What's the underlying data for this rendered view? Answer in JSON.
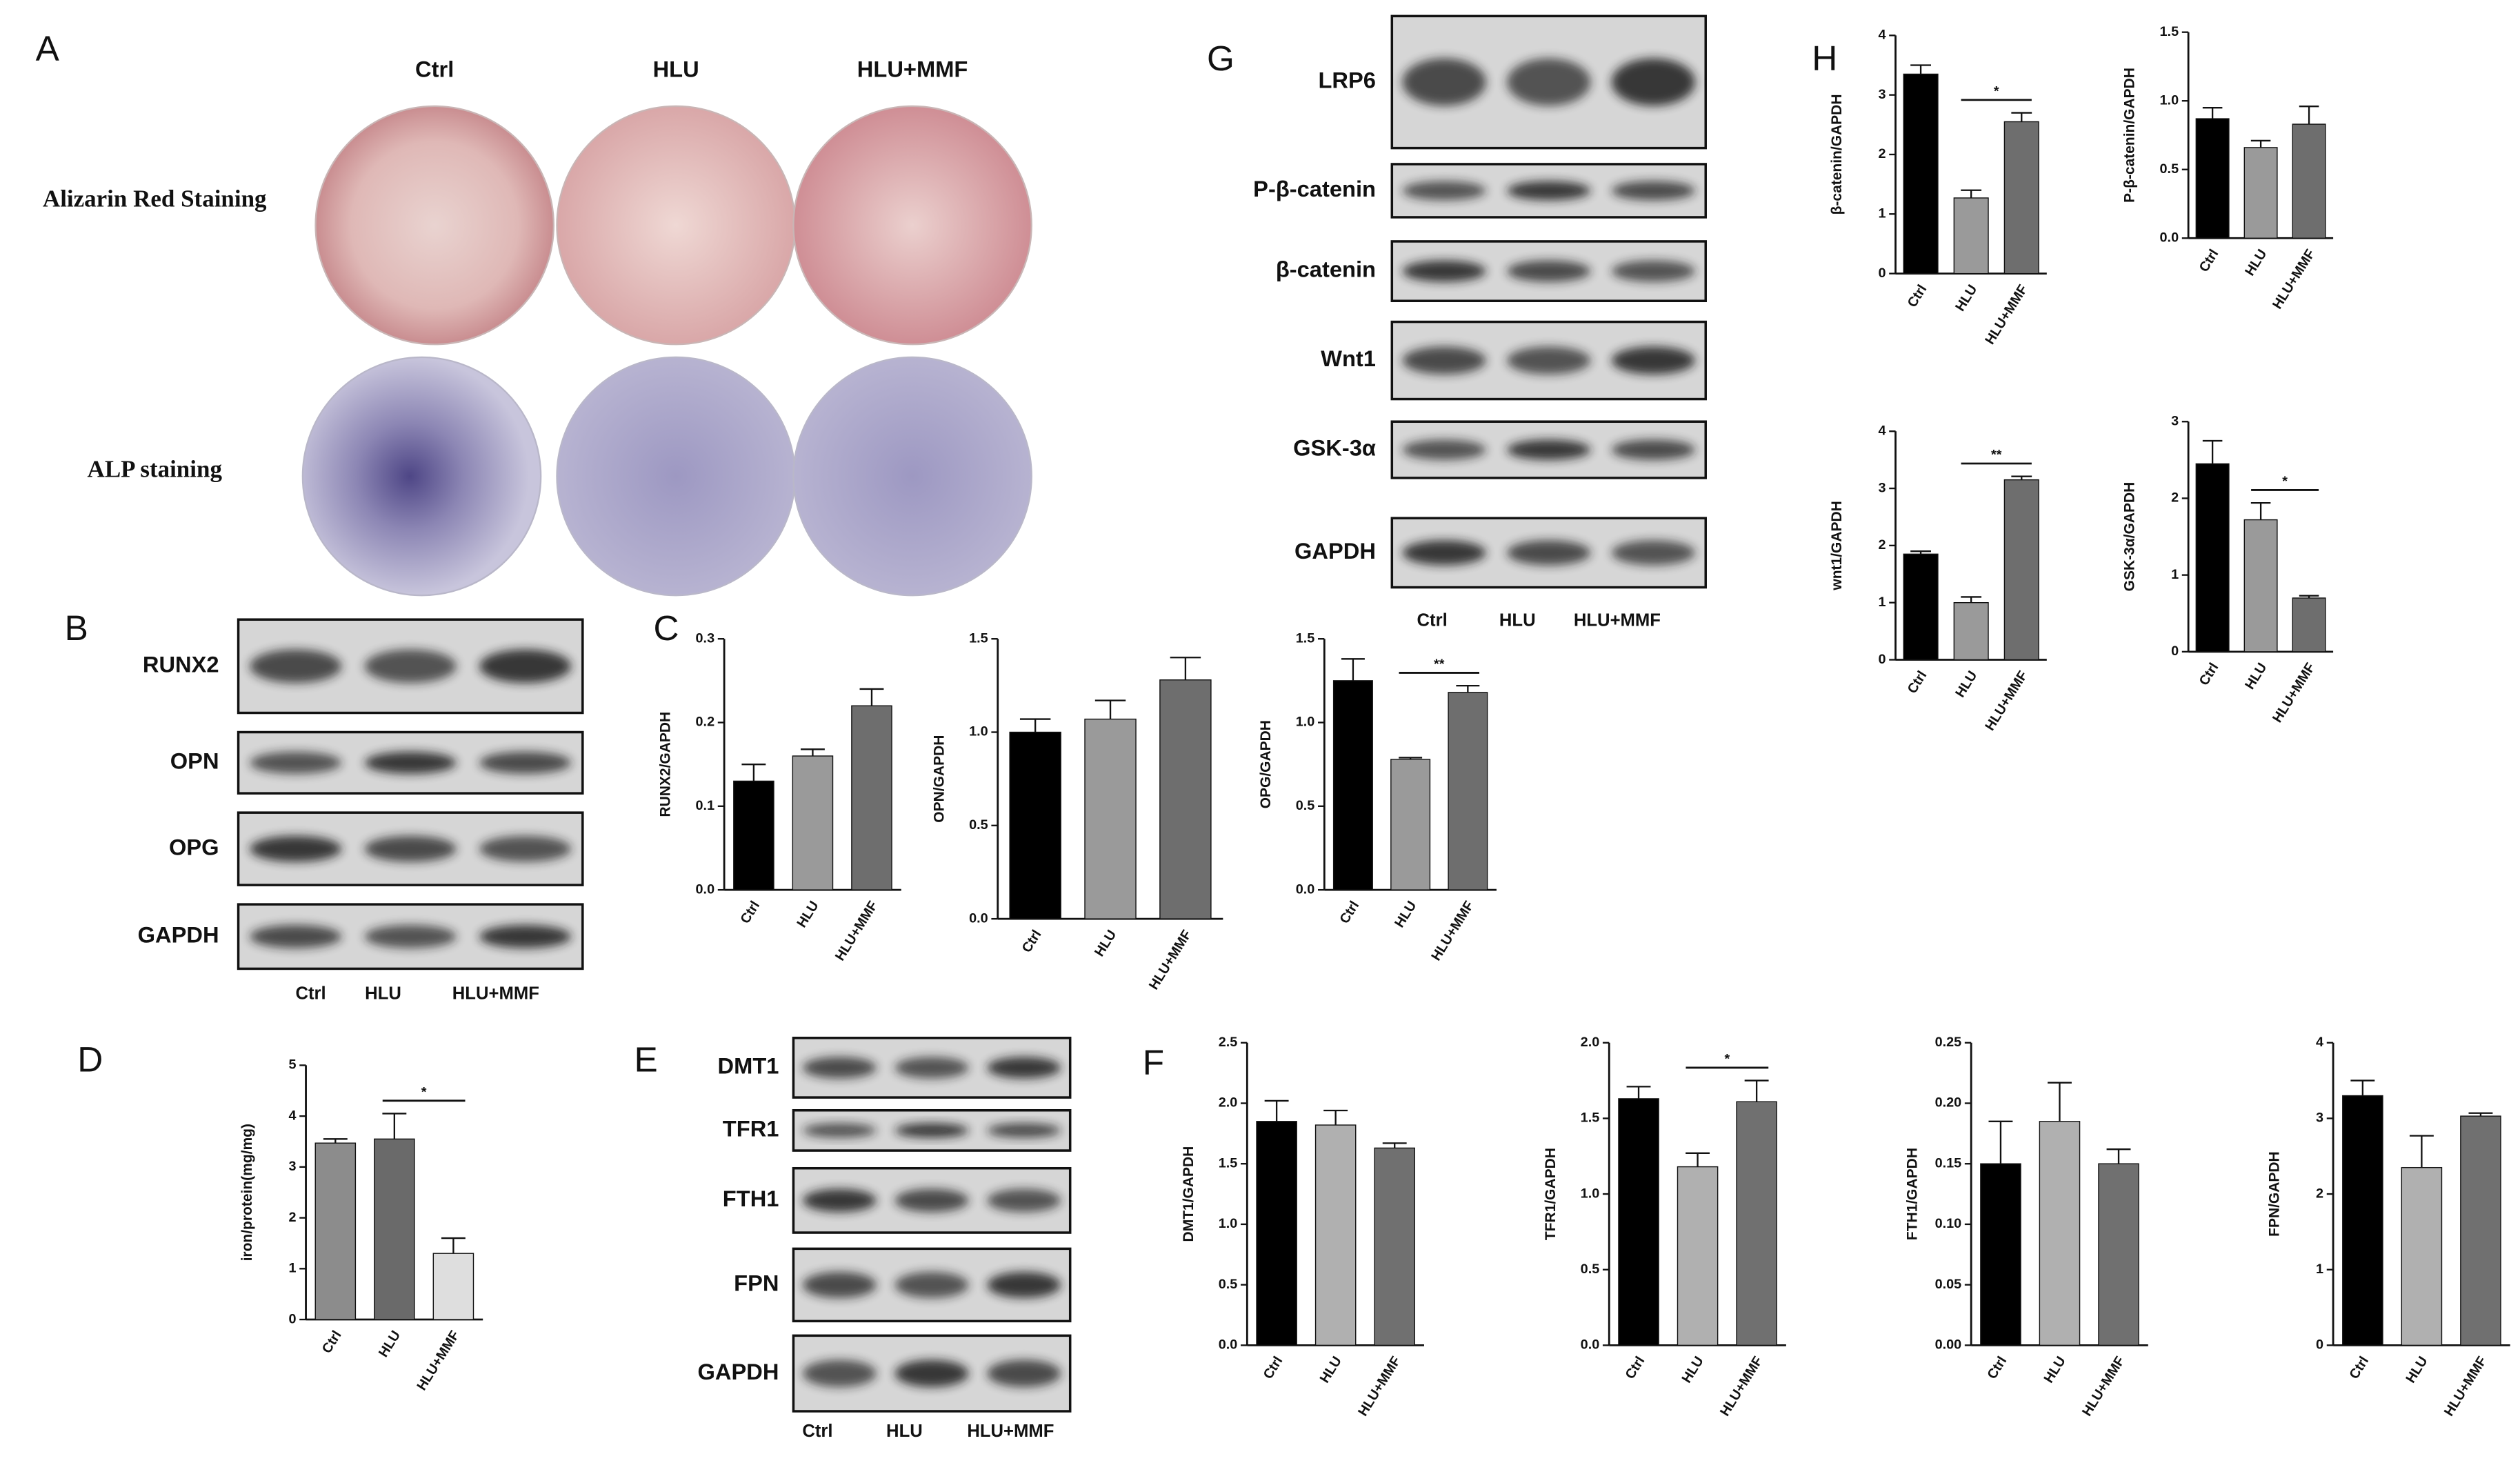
{
  "panel_labels": [
    "A",
    "B",
    "C",
    "D",
    "E",
    "F",
    "G",
    "H"
  ],
  "staining": {
    "columns": [
      "Ctrl",
      "HLU",
      "HLU+MMF"
    ],
    "rows": [
      "Alizarin Red Staining",
      "ALP staining"
    ]
  },
  "blots": [
    {
      "proteins": [
        "RUNX2",
        "OPN",
        "OPG",
        "GAPDH"
      ],
      "lanes": [
        "Ctrl",
        "HLU",
        "HLU+MMF"
      ]
    },
    {
      "proteins": [
        "DMT1",
        "TFR1",
        "FTH1",
        "FPN",
        "GAPDH"
      ],
      "lanes": [
        "Ctrl",
        "HLU",
        "HLU+MMF"
      ]
    },
    {
      "proteins": [
        "LRP6",
        "P-β-catenin",
        "β-catenin",
        "Wnt1",
        "GSK-3α",
        "GAPDH"
      ],
      "lanes": [
        "Ctrl",
        "HLU",
        "HLU+MMF"
      ]
    }
  ],
  "chart_data": [
    {
      "type": "bar",
      "ylabel": "RUNX2/GAPDH",
      "categories": [
        "Ctrl",
        "HLU",
        "HLU+MMF"
      ],
      "values": [
        0.13,
        0.16,
        0.22
      ],
      "errors": [
        0.02,
        0.008,
        0.02
      ],
      "colors": [
        "#000000",
        "#9a9a9a",
        "#6e6e6e"
      ],
      "ylim": [
        0,
        0.3
      ],
      "yticks": [
        {
          "value": 0,
          "label": "0.0"
        },
        0.1,
        0.2,
        0.3
      ],
      "annotations": []
    },
    {
      "type": "bar",
      "ylabel": "OPN/GAPDH",
      "categories": [
        "Ctrl",
        "HLU",
        "HLU+MMF"
      ],
      "values": [
        1.0,
        1.07,
        1.28
      ],
      "errors": [
        0.07,
        0.1,
        0.12
      ],
      "colors": [
        "#000000",
        "#9a9a9a",
        "#6e6e6e"
      ],
      "ylim": [
        0,
        1.5
      ],
      "yticks": [
        {
          "value": 0,
          "label": "0.0"
        },
        0.5,
        {
          "value": 1,
          "label": "1.0"
        },
        1.5
      ],
      "annotations": []
    },
    {
      "type": "bar",
      "ylabel": "OPG/GAPDH",
      "categories": [
        "Ctrl",
        "HLU",
        "HLU+MMF"
      ],
      "values": [
        1.25,
        0.78,
        1.18
      ],
      "errors": [
        0.13,
        0.01,
        0.04
      ],
      "colors": [
        "#000000",
        "#9a9a9a",
        "#6e6e6e"
      ],
      "ylim": [
        0,
        1.5
      ],
      "yticks": [
        {
          "value": 0,
          "label": "0.0"
        },
        0.5,
        {
          "value": 1,
          "label": "1.0"
        },
        1.5
      ],
      "annotations": [
        {
          "label": "**",
          "from": "HLU",
          "to": "HLU+MMF"
        }
      ]
    },
    {
      "type": "bar",
      "ylabel": "iron/protein(mg/mg)",
      "categories": [
        "Ctrl",
        "HLU",
        "HLU+MMF"
      ],
      "values": [
        3.47,
        3.55,
        1.3
      ],
      "errors": [
        0.08,
        0.5,
        0.3
      ],
      "colors": [
        "#8c8c8c",
        "#6a6a6a",
        "#dedede"
      ],
      "ylim": [
        0,
        5
      ],
      "yticks": [
        0,
        1,
        2,
        3,
        4,
        5
      ],
      "annotations": [
        {
          "label": "*",
          "from": "HLU",
          "to": "HLU+MMF"
        }
      ]
    },
    {
      "type": "bar",
      "ylabel": "DMT1/GAPDH",
      "categories": [
        "Ctrl",
        "HLU",
        "HLU+MMF"
      ],
      "values": [
        1.85,
        1.82,
        1.63
      ],
      "errors": [
        0.17,
        0.12,
        0.04
      ],
      "colors": [
        "#000000",
        "#b0b0b0",
        "#707070"
      ],
      "ylim": [
        0,
        2.5
      ],
      "yticks": [
        {
          "value": 0,
          "label": "0.0"
        },
        0.5,
        {
          "value": 1,
          "label": "1.0"
        },
        1.5,
        {
          "value": 2,
          "label": "2.0"
        },
        2.5
      ],
      "annotations": []
    },
    {
      "type": "bar",
      "ylabel": "TFR1/GAPDH",
      "categories": [
        "Ctrl",
        "HLU",
        "HLU+MMF"
      ],
      "values": [
        1.63,
        1.18,
        1.61
      ],
      "errors": [
        0.08,
        0.09,
        0.14
      ],
      "colors": [
        "#000000",
        "#b0b0b0",
        "#707070"
      ],
      "ylim": [
        0,
        2
      ],
      "yticks": [
        {
          "value": 0,
          "label": "0.0"
        },
        0.5,
        {
          "value": 1,
          "label": "1.0"
        },
        1.5,
        {
          "value": 2,
          "label": "2.0"
        }
      ],
      "annotations": [
        {
          "label": "*",
          "from": "HLU",
          "to": "HLU+MMF"
        }
      ]
    },
    {
      "type": "bar",
      "ylabel": "FTH1/GAPDH",
      "categories": [
        "Ctrl",
        "HLU",
        "HLU+MMF"
      ],
      "values": [
        0.15,
        0.185,
        0.15
      ],
      "errors": [
        0.035,
        0.032,
        0.012
      ],
      "colors": [
        "#000000",
        "#b0b0b0",
        "#707070"
      ],
      "ylim": [
        0,
        0.25
      ],
      "yticks": [
        {
          "value": 0,
          "label": "0.00"
        },
        0.05,
        {
          "value": 0.1,
          "label": "0.10"
        },
        0.15,
        {
          "value": 0.2,
          "label": "0.20"
        },
        0.25
      ],
      "annotations": []
    },
    {
      "type": "bar",
      "ylabel": "FPN/GAPDH",
      "categories": [
        "Ctrl",
        "HLU",
        "HLU+MMF"
      ],
      "values": [
        3.3,
        2.35,
        3.03
      ],
      "errors": [
        0.2,
        0.42,
        0.04
      ],
      "colors": [
        "#000000",
        "#b0b0b0",
        "#707070"
      ],
      "ylim": [
        0,
        4
      ],
      "yticks": [
        0,
        1,
        2,
        3,
        4
      ],
      "annotations": []
    },
    {
      "type": "bar",
      "ylabel": "β-catenin/GAPDH",
      "categories": [
        "Ctrl",
        "HLU",
        "HLU+MMF"
      ],
      "values": [
        3.35,
        1.27,
        2.55
      ],
      "errors": [
        0.15,
        0.13,
        0.15
      ],
      "colors": [
        "#000000",
        "#9a9a9a",
        "#6e6e6e"
      ],
      "ylim": [
        0,
        4
      ],
      "yticks": [
        0,
        1,
        2,
        3,
        4
      ],
      "annotations": [
        {
          "label": "*",
          "from": "HLU",
          "to": "HLU+MMF"
        }
      ]
    },
    {
      "type": "bar",
      "ylabel": "P-β-catenin/GAPDH",
      "categories": [
        "Ctrl",
        "HLU",
        "HLU+MMF"
      ],
      "values": [
        0.87,
        0.66,
        0.83
      ],
      "errors": [
        0.08,
        0.05,
        0.13
      ],
      "colors": [
        "#000000",
        "#9a9a9a",
        "#6e6e6e"
      ],
      "ylim": [
        0,
        1.5
      ],
      "yticks": [
        {
          "value": 0,
          "label": "0.0"
        },
        0.5,
        {
          "value": 1,
          "label": "1.0"
        },
        1.5
      ],
      "annotations": []
    },
    {
      "type": "bar",
      "ylabel": "wnt1/GAPDH",
      "categories": [
        "Ctrl",
        "HLU",
        "HLU+MMF"
      ],
      "values": [
        1.85,
        1.0,
        3.15
      ],
      "errors": [
        0.05,
        0.1,
        0.06
      ],
      "colors": [
        "#000000",
        "#9a9a9a",
        "#6e6e6e"
      ],
      "ylim": [
        0,
        4
      ],
      "yticks": [
        0,
        1,
        2,
        3,
        4
      ],
      "annotations": [
        {
          "label": "**",
          "from": "HLU",
          "to": "HLU+MMF"
        }
      ]
    },
    {
      "type": "bar",
      "ylabel": "GSK-3α/GAPDH",
      "categories": [
        "Ctrl",
        "HLU",
        "HLU+MMF"
      ],
      "values": [
        2.45,
        1.72,
        0.7
      ],
      "errors": [
        0.3,
        0.22,
        0.03
      ],
      "colors": [
        "#000000",
        "#9a9a9a",
        "#6e6e6e"
      ],
      "ylim": [
        0,
        3
      ],
      "yticks": [
        0,
        1,
        2,
        3
      ],
      "annotations": [
        {
          "label": "*",
          "from": "HLU",
          "to": "HLU+MMF"
        }
      ]
    }
  ]
}
